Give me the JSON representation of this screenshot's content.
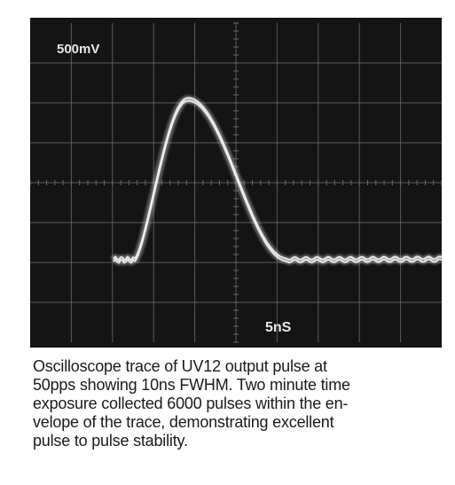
{
  "oscilloscope": {
    "volts_per_div_label": "500mV",
    "time_per_div_label": "5nS"
  },
  "caption": {
    "lines": [
      "Oscilloscope trace of UV12 output pulse at",
      "50pps showing 10ns FWHM. Two minute time",
      "exposure collected 6000 pulses within the en-",
      "velope of the trace, demonstrating excellent",
      "pulse to pulse stability."
    ]
  },
  "colors": {
    "screen": "#141414",
    "grid": "#6a6a6a",
    "trace": "#f2f2f2",
    "caption_text": "#1a1a1a"
  }
}
